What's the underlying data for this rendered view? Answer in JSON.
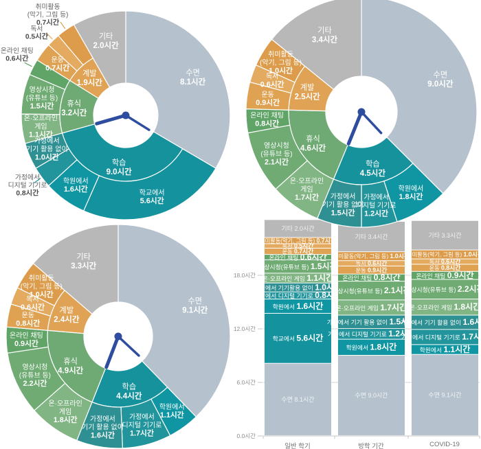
{
  "unit": "시간",
  "palette": {
    "sleep": "#b5c2cd",
    "etc": "#b9b8b8",
    "study": "#16929d",
    "rest": "#6fa973",
    "develop": "#e0a355",
    "clock": "#2e4d9e",
    "grid": "#d4d4d4",
    "axis_line": "#c4c4c4",
    "axis_text": "#8d8d8d",
    "category_text": "#6f6f6f",
    "out_label_name": "#5f5f5f",
    "out_label_value": "#4a4a4a",
    "slice_text": "#ffffff",
    "sub": {
      "school": "#14929e",
      "academy": "#0f96a2",
      "home_digital": "#22949b",
      "home_no_device": "#2e9092",
      "game": "#82b584",
      "video": "#6fab73",
      "chat": "#61a468",
      "exercise": "#dfa253",
      "reading": "#e3aa60",
      "hobby": "#dc9c4b"
    }
  },
  "chart_data": [
    {
      "id": "semester-donut",
      "type": "sunburst",
      "position": "top-left",
      "total_hours": 24.2,
      "segments": [
        {
          "label": "수면",
          "value": 8.1,
          "color": "sleep"
        },
        {
          "label": "학습",
          "value": 9.0,
          "color": "study",
          "children": [
            {
              "label": "학교에서",
              "value": 5.6,
              "color": "school"
            },
            {
              "label": "학원에서",
              "value": 1.6,
              "color": "academy"
            },
            {
              "label": "가정에서 디지털 기기로",
              "label_lines": [
                "가정에서",
                "디지털 기기로"
              ],
              "value": 0.8,
              "color": "home_digital",
              "out": true
            },
            {
              "label": "가정에서 기기 활용 없이",
              "label_lines": [
                "가정에서",
                "기기 활용 없이"
              ],
              "value": 1.0,
              "color": "home_no_device"
            }
          ]
        },
        {
          "label": "휴식",
          "value": 3.2,
          "color": "rest",
          "children": [
            {
              "label": "온·오프라인 게임",
              "label_lines": [
                "온·오프라인",
                "게임"
              ],
              "value": 1.1,
              "color": "game"
            },
            {
              "label": "영상시청 (유튜브 등)",
              "label_lines": [
                "영상시청",
                "(유튜브 등)"
              ],
              "value": 1.5,
              "color": "video"
            },
            {
              "label": "온라인 채팅",
              "value": 0.6,
              "color": "chat",
              "out": true
            }
          ]
        },
        {
          "label": "계발",
          "value": 1.9,
          "color": "develop",
          "children": [
            {
              "label": "운동",
              "value": 0.7,
              "color": "exercise"
            },
            {
              "label": "독서",
              "value": 0.5,
              "color": "reading",
              "out": true
            },
            {
              "label": "취미활동 (악기, 그림 등)",
              "label_lines": [
                "취미활동",
                "(악기, 그림 등)"
              ],
              "value": 0.7,
              "color": "hobby",
              "out": true
            }
          ]
        },
        {
          "label": "기타",
          "value": 2.0,
          "color": "etc"
        }
      ]
    },
    {
      "id": "vacation-donut",
      "type": "sunburst",
      "position": "top-right",
      "total_hours": 24.0,
      "segments": [
        {
          "label": "수면",
          "value": 9.0,
          "color": "sleep"
        },
        {
          "label": "학습",
          "value": 4.5,
          "color": "study",
          "children": [
            {
              "label": "학원에서",
              "value": 1.8,
              "color": "academy"
            },
            {
              "label": "가정에서 디지털 기기로",
              "label_lines": [
                "가정에서",
                "디지털 기기로"
              ],
              "value": 1.2,
              "color": "home_digital"
            },
            {
              "label": "가정에서 기기 활용 없이",
              "label_lines": [
                "가정에서",
                "기기 활용 없이"
              ],
              "value": 1.5,
              "color": "home_no_device"
            }
          ]
        },
        {
          "label": "휴식",
          "value": 4.6,
          "color": "rest",
          "children": [
            {
              "label": "온·오프라인 게임",
              "label_lines": [
                "온·오프라인",
                "게임"
              ],
              "value": 1.7,
              "color": "game"
            },
            {
              "label": "영상시청 (유튜브 등)",
              "label_lines": [
                "영상시청",
                "(유튜브 등)"
              ],
              "value": 2.1,
              "color": "video"
            },
            {
              "label": "온라인 채팅",
              "value": 0.8,
              "color": "chat"
            }
          ]
        },
        {
          "label": "계발",
          "value": 2.5,
          "color": "develop",
          "children": [
            {
              "label": "운동",
              "value": 0.9,
              "color": "exercise"
            },
            {
              "label": "독서",
              "value": 0.6,
              "color": "reading"
            },
            {
              "label": "취미활동 (악기, 그림 등)",
              "label_lines": [
                "취미활동",
                "(악기, 그림 등)"
              ],
              "value": 1.0,
              "color": "hobby"
            }
          ]
        },
        {
          "label": "기타",
          "value": 3.4,
          "color": "etc"
        }
      ]
    },
    {
      "id": "covid-donut",
      "type": "sunburst",
      "position": "bottom-left",
      "total_hours": 24.1,
      "segments": [
        {
          "label": "수면",
          "value": 9.1,
          "color": "sleep"
        },
        {
          "label": "학습",
          "value": 4.4,
          "color": "study",
          "children": [
            {
              "label": "학원에서",
              "value": 1.1,
              "color": "academy"
            },
            {
              "label": "가정에서 디지털 기기로",
              "label_lines": [
                "가정에서",
                "디지털 기기로"
              ],
              "value": 1.7,
              "color": "home_digital"
            },
            {
              "label": "가정에서 기기 활용 없이",
              "label_lines": [
                "가정에서",
                "기기 활용 없이"
              ],
              "value": 1.6,
              "color": "home_no_device"
            }
          ]
        },
        {
          "label": "휴식",
          "value": 4.9,
          "color": "rest",
          "children": [
            {
              "label": "온·오프라인 게임",
              "label_lines": [
                "온·오프라인",
                "게임"
              ],
              "value": 1.8,
              "color": "game"
            },
            {
              "label": "영상시청 (유튜브 등)",
              "label_lines": [
                "영상시청",
                "(유튜브 등)"
              ],
              "value": 2.2,
              "color": "video"
            },
            {
              "label": "온라인 채팅",
              "value": 0.9,
              "color": "chat"
            }
          ]
        },
        {
          "label": "계발",
          "value": 2.4,
          "color": "develop",
          "children": [
            {
              "label": "운동",
              "value": 0.8,
              "color": "exercise"
            },
            {
              "label": "독서",
              "value": 0.6,
              "color": "reading"
            },
            {
              "label": "취미활동 (악기, 그림 등)",
              "label_lines": [
                "취미활동",
                "(악기, 그림 등)"
              ],
              "value": 1.0,
              "color": "hobby"
            }
          ]
        },
        {
          "label": "기타",
          "value": 3.3,
          "color": "etc"
        }
      ]
    },
    {
      "id": "comparison-bars",
      "type": "stacked_bar",
      "position": "bottom-right",
      "ylim": [
        0,
        24
      ],
      "ylabel_ticks": [
        {
          "v": 0,
          "label": "0.0시간"
        },
        {
          "v": 6,
          "label": "6.0시간"
        },
        {
          "v": 12,
          "label": "12.0시간"
        },
        {
          "v": 18,
          "label": "18.0시간"
        }
      ],
      "categories": [
        "일반 학기",
        "방학 기간",
        "COVID-19"
      ],
      "bars": [
        {
          "category": "일반 학기",
          "segments": [
            {
              "label": "수면",
              "value": 8.1,
              "color": "sleep",
              "style": "muted"
            },
            {
              "label": "학교에서",
              "value": 5.6,
              "color": "school",
              "style": "normal"
            },
            {
              "label": "학원에서",
              "value": 1.6,
              "color": "academy",
              "style": "normal"
            },
            {
              "label": "가정에서 디지털 기기로",
              "value": 0.8,
              "color": "home_digital",
              "style": "normal"
            },
            {
              "label": "가정에서 기기활용 없이",
              "value": 1.0,
              "color": "home_no_device",
              "style": "normal"
            },
            {
              "label": "온·오프라인 게임",
              "value": 1.1,
              "color": "game",
              "style": "normal"
            },
            {
              "label": "영상시청(유튜브 등)",
              "value": 1.5,
              "color": "video",
              "style": "normal"
            },
            {
              "label": "온라인 채팅",
              "value": 0.6,
              "color": "chat",
              "style": "normal"
            },
            {
              "label": "운동",
              "value": 0.7,
              "color": "exercise",
              "style": "small"
            },
            {
              "label": "독서",
              "value": 0.5,
              "color": "reading",
              "style": "small"
            },
            {
              "label": "취미활동(악기, 그림 등)",
              "value": 0.7,
              "color": "hobby",
              "style": "small"
            },
            {
              "label": "기타",
              "value": 2.0,
              "color": "etc",
              "style": "muted"
            }
          ]
        },
        {
          "category": "방학 기간",
          "segments": [
            {
              "label": "수면",
              "value": 9.0,
              "color": "sleep",
              "style": "muted"
            },
            {
              "label": "학원에서",
              "value": 1.8,
              "color": "academy",
              "style": "normal"
            },
            {
              "label": "가정에서 디지털 기기로",
              "value": 1.2,
              "color": "home_digital",
              "style": "normal"
            },
            {
              "label": "가정에서 기기 활용 없이",
              "value": 1.5,
              "color": "home_no_device",
              "style": "normal"
            },
            {
              "label": "온·오프라인 게임",
              "value": 1.7,
              "color": "game",
              "style": "normal"
            },
            {
              "label": "영상시청(유튜브 등)",
              "value": 2.1,
              "color": "video",
              "style": "normal"
            },
            {
              "label": "온라인 채팅",
              "value": 0.8,
              "color": "chat",
              "style": "normal"
            },
            {
              "label": "운동",
              "value": 0.9,
              "color": "exercise",
              "style": "small"
            },
            {
              "label": "독서",
              "value": 0.6,
              "color": "reading",
              "style": "small"
            },
            {
              "label": "취미활동(악기, 그림 등)",
              "value": 1.0,
              "color": "hobby",
              "style": "small"
            },
            {
              "label": "기타",
              "value": 3.4,
              "color": "etc",
              "style": "muted"
            }
          ]
        },
        {
          "category": "COVID-19",
          "segments": [
            {
              "label": "수면",
              "value": 9.1,
              "color": "sleep",
              "style": "muted"
            },
            {
              "label": "학원에서",
              "value": 1.1,
              "color": "academy",
              "style": "normal"
            },
            {
              "label": "가정에서 디지털 기기로",
              "value": 1.7,
              "color": "home_digital",
              "style": "normal"
            },
            {
              "label": "가정에서 기기 활용 없이",
              "value": 1.6,
              "color": "home_no_device",
              "style": "normal"
            },
            {
              "label": "온·오프라인 게임",
              "value": 1.8,
              "color": "game",
              "style": "normal"
            },
            {
              "label": "영상시청(유튜브 등)",
              "value": 2.2,
              "color": "video",
              "style": "normal"
            },
            {
              "label": "온라인 채팅",
              "value": 0.9,
              "color": "chat",
              "style": "normal"
            },
            {
              "label": "운동",
              "value": 0.8,
              "color": "exercise",
              "style": "small"
            },
            {
              "label": "독서",
              "value": 0.6,
              "color": "reading",
              "style": "small"
            },
            {
              "label": "취미활동(악기, 그림 등)",
              "value": 1.0,
              "color": "hobby",
              "style": "small"
            },
            {
              "label": "기타",
              "value": 3.3,
              "color": "etc",
              "style": "muted"
            }
          ]
        }
      ]
    }
  ]
}
